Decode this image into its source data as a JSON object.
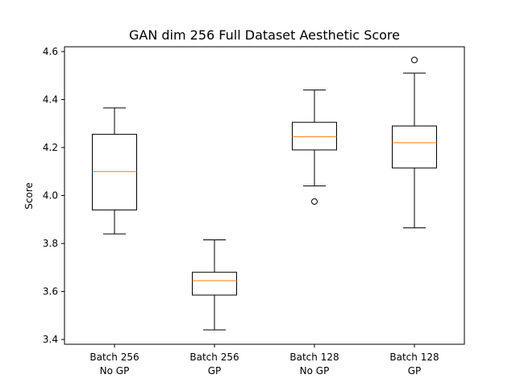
{
  "chart_data": {
    "type": "boxplot",
    "title": "GAN dim 256 Full Dataset Aesthetic Score",
    "xlabel": "",
    "ylabel": "Score",
    "ylim": [
      3.38,
      4.62
    ],
    "yticks": [
      3.4,
      3.6,
      3.8,
      4.0,
      4.2,
      4.4,
      4.6
    ],
    "ytick_labels": [
      "3.4",
      "3.6",
      "3.8",
      "4.0",
      "4.2",
      "4.4",
      "4.6"
    ],
    "grid": false,
    "categories": [
      {
        "line1": "Batch 256",
        "line2": "No GP"
      },
      {
        "line1": "Batch 256",
        "line2": "GP"
      },
      {
        "line1": "Batch 128",
        "line2": "No GP"
      },
      {
        "line1": "Batch 128",
        "line2": "GP"
      }
    ],
    "boxes": [
      {
        "whisker_low": 3.84,
        "q1": 3.94,
        "median": 4.1,
        "q3": 4.255,
        "whisker_high": 4.365,
        "outliers": []
      },
      {
        "whisker_low": 3.44,
        "q1": 3.585,
        "median": 3.645,
        "q3": 3.68,
        "whisker_high": 3.815,
        "outliers": []
      },
      {
        "whisker_low": 4.04,
        "q1": 4.19,
        "median": 4.245,
        "q3": 4.305,
        "whisker_high": 4.44,
        "outliers": [
          3.975
        ]
      },
      {
        "whisker_low": 3.865,
        "q1": 4.115,
        "median": 4.22,
        "q3": 4.29,
        "whisker_high": 4.51,
        "outliers": [
          4.565
        ]
      }
    ],
    "colors": {
      "box": "#000000",
      "median": "#ff7f0e",
      "background": "#ffffff"
    }
  }
}
